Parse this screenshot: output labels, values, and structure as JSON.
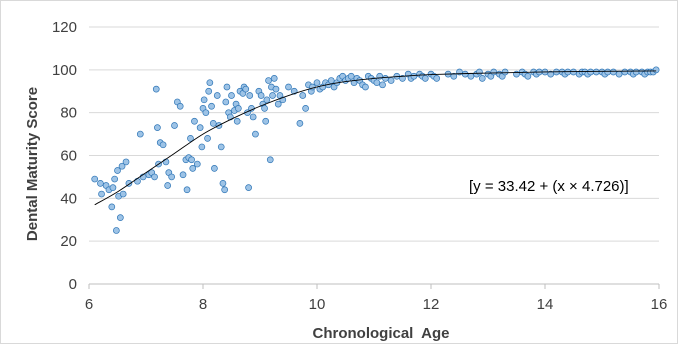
{
  "chart_data": {
    "type": "scatter",
    "title": "",
    "xlabel": "Chronological  Age",
    "ylabel": "Dental Maturity Score",
    "xlim": [
      6,
      16
    ],
    "ylim": [
      0,
      120
    ],
    "x_ticks": [
      "6",
      "8",
      "10",
      "12",
      "14",
      "16"
    ],
    "y_ticks": [
      "0",
      "20",
      "40",
      "60",
      "80",
      "100",
      "120"
    ],
    "grid": "horizontal",
    "legend": "none",
    "annotation": "[y = 33.42 + (x × 4.726)]",
    "marker_color": "#9dc3e6",
    "marker_edge_color": "#2e75b6",
    "line_color": "#000000",
    "points": [
      [
        6.1,
        49
      ],
      [
        6.2,
        47
      ],
      [
        6.22,
        42
      ],
      [
        6.3,
        46
      ],
      [
        6.35,
        44
      ],
      [
        6.4,
        36
      ],
      [
        6.42,
        45
      ],
      [
        6.45,
        49
      ],
      [
        6.48,
        25
      ],
      [
        6.5,
        53
      ],
      [
        6.52,
        41
      ],
      [
        6.55,
        31
      ],
      [
        6.58,
        55
      ],
      [
        6.6,
        42
      ],
      [
        6.65,
        57
      ],
      [
        6.7,
        47
      ],
      [
        6.85,
        48
      ],
      [
        6.9,
        70
      ],
      [
        6.95,
        50
      ],
      [
        7.05,
        51
      ],
      [
        7.1,
        52
      ],
      [
        7.15,
        50
      ],
      [
        7.18,
        91
      ],
      [
        7.2,
        73
      ],
      [
        7.22,
        56
      ],
      [
        7.25,
        66
      ],
      [
        7.3,
        65
      ],
      [
        7.35,
        57
      ],
      [
        7.38,
        46
      ],
      [
        7.4,
        52
      ],
      [
        7.45,
        50
      ],
      [
        7.5,
        74
      ],
      [
        7.55,
        85
      ],
      [
        7.6,
        83
      ],
      [
        7.65,
        51
      ],
      [
        7.7,
        58
      ],
      [
        7.72,
        44
      ],
      [
        7.75,
        59
      ],
      [
        7.78,
        68
      ],
      [
        7.8,
        58
      ],
      [
        7.82,
        54
      ],
      [
        7.85,
        76
      ],
      [
        7.9,
        56
      ],
      [
        7.95,
        73
      ],
      [
        7.98,
        64
      ],
      [
        8.0,
        82
      ],
      [
        8.02,
        86
      ],
      [
        8.05,
        80
      ],
      [
        8.08,
        68
      ],
      [
        8.1,
        90
      ],
      [
        8.12,
        94
      ],
      [
        8.15,
        83
      ],
      [
        8.18,
        75
      ],
      [
        8.2,
        54
      ],
      [
        8.25,
        88
      ],
      [
        8.28,
        74
      ],
      [
        8.32,
        64
      ],
      [
        8.35,
        47
      ],
      [
        8.38,
        44
      ],
      [
        8.4,
        85
      ],
      [
        8.42,
        92
      ],
      [
        8.45,
        80
      ],
      [
        8.48,
        78
      ],
      [
        8.5,
        88
      ],
      [
        8.55,
        81
      ],
      [
        8.58,
        84
      ],
      [
        8.6,
        76
      ],
      [
        8.62,
        82
      ],
      [
        8.65,
        90
      ],
      [
        8.7,
        89
      ],
      [
        8.72,
        92
      ],
      [
        8.75,
        91
      ],
      [
        8.78,
        80
      ],
      [
        8.8,
        45
      ],
      [
        8.82,
        88
      ],
      [
        8.85,
        82
      ],
      [
        8.88,
        78
      ],
      [
        8.92,
        70
      ],
      [
        8.98,
        90
      ],
      [
        9.02,
        88
      ],
      [
        9.05,
        84
      ],
      [
        9.08,
        82
      ],
      [
        9.1,
        76
      ],
      [
        9.12,
        86
      ],
      [
        9.15,
        95
      ],
      [
        9.18,
        58
      ],
      [
        9.2,
        92
      ],
      [
        9.22,
        88
      ],
      [
        9.25,
        96
      ],
      [
        9.28,
        91
      ],
      [
        9.32,
        84
      ],
      [
        9.35,
        88
      ],
      [
        9.4,
        86
      ],
      [
        9.5,
        92
      ],
      [
        9.6,
        90
      ],
      [
        9.7,
        75
      ],
      [
        9.75,
        88
      ],
      [
        9.8,
        82
      ],
      [
        9.85,
        93
      ],
      [
        9.9,
        90
      ],
      [
        9.92,
        92
      ],
      [
        10.0,
        94
      ],
      [
        10.05,
        91
      ],
      [
        10.1,
        92
      ],
      [
        10.15,
        94
      ],
      [
        10.2,
        93
      ],
      [
        10.25,
        95
      ],
      [
        10.3,
        92
      ],
      [
        10.35,
        94
      ],
      [
        10.4,
        96
      ],
      [
        10.45,
        97
      ],
      [
        10.5,
        95
      ],
      [
        10.55,
        96
      ],
      [
        10.6,
        97
      ],
      [
        10.65,
        94
      ],
      [
        10.7,
        96
      ],
      [
        10.75,
        95
      ],
      [
        10.8,
        93
      ],
      [
        10.85,
        92
      ],
      [
        10.9,
        97
      ],
      [
        10.95,
        96
      ],
      [
        11.0,
        95
      ],
      [
        11.05,
        94
      ],
      [
        11.1,
        97
      ],
      [
        11.15,
        93
      ],
      [
        11.2,
        96
      ],
      [
        11.3,
        95
      ],
      [
        11.4,
        97
      ],
      [
        11.5,
        96
      ],
      [
        11.6,
        98
      ],
      [
        11.65,
        96
      ],
      [
        11.7,
        97
      ],
      [
        11.8,
        98
      ],
      [
        11.85,
        97
      ],
      [
        11.9,
        96
      ],
      [
        12.0,
        98
      ],
      [
        12.05,
        97
      ],
      [
        12.1,
        96
      ],
      [
        12.3,
        98
      ],
      [
        12.4,
        97
      ],
      [
        12.5,
        99
      ],
      [
        12.6,
        98
      ],
      [
        12.7,
        97
      ],
      [
        12.8,
        98
      ],
      [
        12.85,
        99
      ],
      [
        12.9,
        96
      ],
      [
        13.0,
        98
      ],
      [
        13.05,
        97
      ],
      [
        13.1,
        99
      ],
      [
        13.2,
        98
      ],
      [
        13.25,
        97
      ],
      [
        13.3,
        99
      ],
      [
        13.5,
        98
      ],
      [
        13.6,
        99
      ],
      [
        13.65,
        98
      ],
      [
        13.7,
        97
      ],
      [
        13.8,
        99
      ],
      [
        13.85,
        98
      ],
      [
        13.9,
        99
      ],
      [
        14.0,
        99
      ],
      [
        14.1,
        98
      ],
      [
        14.2,
        99
      ],
      [
        14.3,
        99
      ],
      [
        14.35,
        98
      ],
      [
        14.4,
        99
      ],
      [
        14.5,
        99
      ],
      [
        14.6,
        98
      ],
      [
        14.65,
        99
      ],
      [
        14.7,
        99
      ],
      [
        14.75,
        98
      ],
      [
        14.8,
        99
      ],
      [
        14.9,
        99
      ],
      [
        15.0,
        99
      ],
      [
        15.05,
        98
      ],
      [
        15.1,
        99
      ],
      [
        15.2,
        99
      ],
      [
        15.3,
        98
      ],
      [
        15.4,
        99
      ],
      [
        15.5,
        99
      ],
      [
        15.55,
        98
      ],
      [
        15.6,
        99
      ],
      [
        15.7,
        99
      ],
      [
        15.75,
        98
      ],
      [
        15.8,
        99
      ],
      [
        15.85,
        99
      ],
      [
        15.9,
        99
      ],
      [
        15.95,
        100
      ]
    ],
    "trend_curve": [
      [
        6.1,
        37
      ],
      [
        6.5,
        43
      ],
      [
        7.0,
        52
      ],
      [
        7.5,
        61
      ],
      [
        8.0,
        70
      ],
      [
        8.5,
        77
      ],
      [
        9.0,
        83
      ],
      [
        9.5,
        88
      ],
      [
        10.0,
        92
      ],
      [
        10.5,
        94.5
      ],
      [
        11.0,
        96
      ],
      [
        11.5,
        97
      ],
      [
        12.0,
        97.8
      ],
      [
        13.0,
        98.5
      ],
      [
        14.0,
        99
      ],
      [
        15.0,
        99.3
      ],
      [
        15.95,
        99.5
      ]
    ]
  }
}
